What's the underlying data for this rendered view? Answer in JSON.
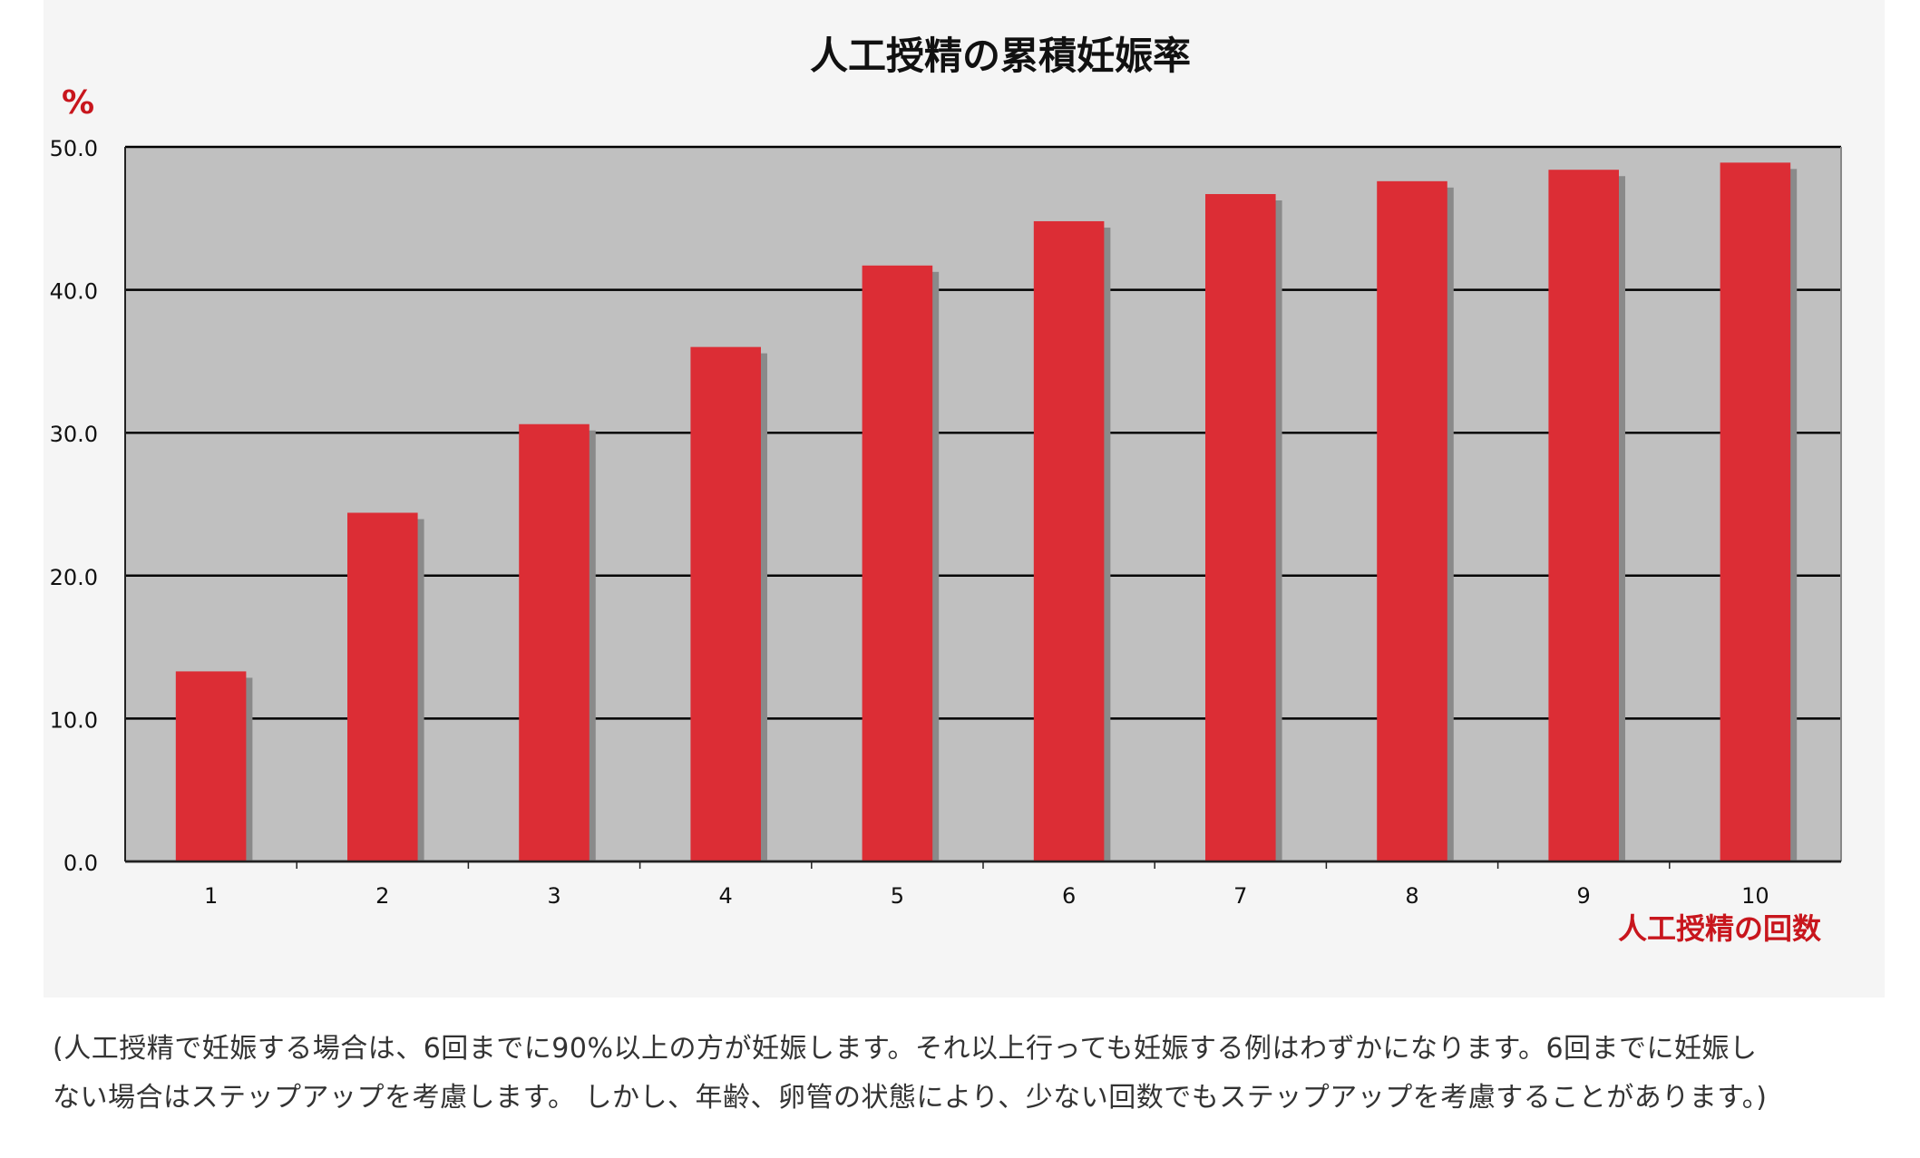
{
  "colors": {
    "bar": "#dc2d35",
    "bar_shadow": "#8a8a8a",
    "plot_bg": "#c0c0c0",
    "panel_bg": "#f5f5f5",
    "accent_red": "#c8161d",
    "grid": "#000000"
  },
  "chart_data": {
    "type": "bar",
    "title": "人工授精の累積妊娠率",
    "ylabel": "%",
    "xlabel": "人工授精の回数",
    "categories": [
      "1",
      "2",
      "3",
      "4",
      "5",
      "6",
      "7",
      "8",
      "9",
      "10"
    ],
    "values": [
      13.3,
      24.4,
      30.6,
      36.0,
      41.7,
      44.8,
      46.7,
      47.6,
      48.4,
      48.9
    ],
    "ylim": [
      0,
      50
    ],
    "yticks": [
      "0.0",
      "10.0",
      "20.0",
      "30.0",
      "40.0",
      "50.0"
    ],
    "grid": true,
    "legend": "none"
  },
  "caption": {
    "line1": "(人工授精で妊娠する場合は、6回までに90%以上の方が妊娠します。それ以上行っても妊娠する例はわずかになります。6回までに妊娠し",
    "line2": "ない場合はステップアップを考慮します。 しかし、年齢、卵管の状態により、少ない回数でもステップアップを考慮することがあります。)"
  }
}
